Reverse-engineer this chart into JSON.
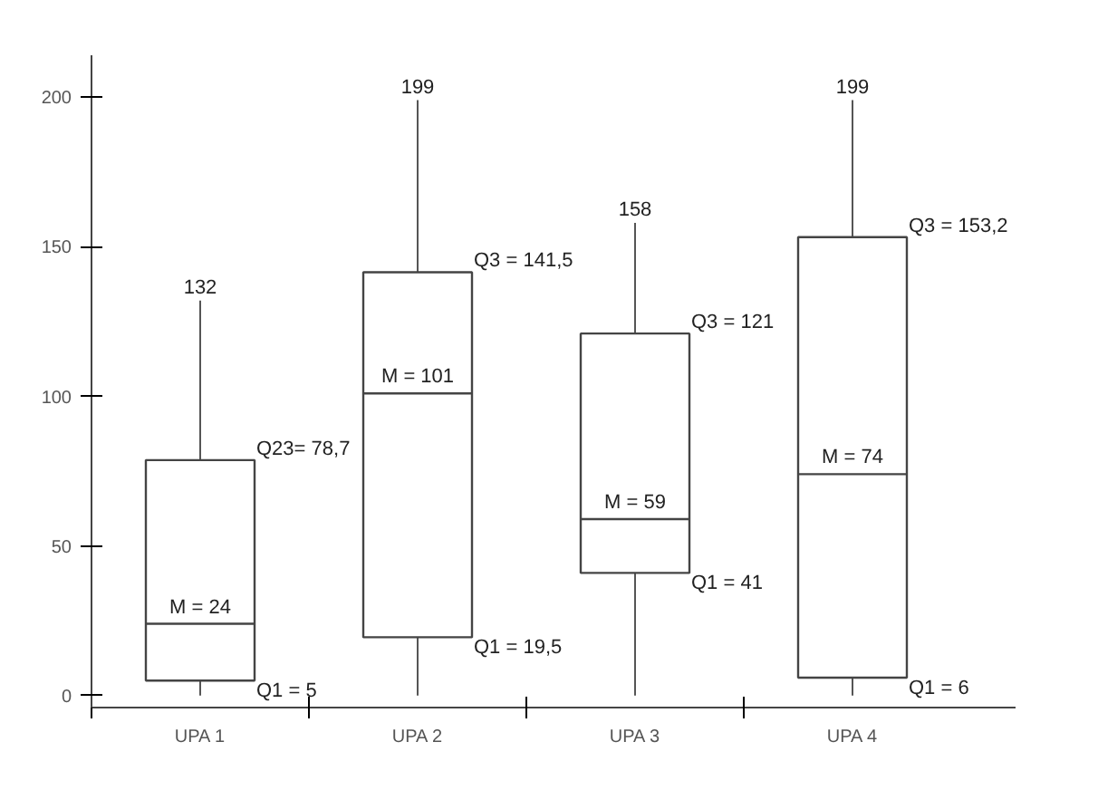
{
  "chart_data": {
    "type": "box",
    "categories": [
      "UPA 1",
      "UPA 2",
      "UPA 3",
      "UPA 4"
    ],
    "boxes": [
      {
        "low": 0,
        "q1": 5,
        "median": 24,
        "q3": 78.7,
        "high": 132
      },
      {
        "low": 0,
        "q1": 19.5,
        "median": 101,
        "q3": 141.5,
        "high": 199
      },
      {
        "low": 0,
        "q1": 41,
        "median": 59,
        "q3": 121,
        "high": 158
      },
      {
        "low": 0,
        "q1": 6,
        "median": 74,
        "q3": 153.2,
        "high": 199
      }
    ],
    "ylim": [
      -4,
      214
    ],
    "yticks": [
      0,
      50,
      100,
      150,
      200
    ],
    "grid": false,
    "color": "#ffffff",
    "annotations": [
      {
        "text": "132",
        "x": "UPA 1",
        "y": 132
      },
      {
        "text": "Q23= 78,7",
        "x": "UPA 1",
        "y": 78.7
      },
      {
        "text": "M = 24",
        "x": "UPA 1",
        "y": 24
      },
      {
        "text": "Q1 = 5",
        "x": "UPA 1",
        "y": 5
      },
      {
        "text": "199",
        "x": "UPA 2",
        "y": 199
      },
      {
        "text": "Q3 = 141,5",
        "x": "UPA 2",
        "y": 141.5
      },
      {
        "text": "M = 101",
        "x": "UPA 2",
        "y": 101
      },
      {
        "text": "Q1 = 19,5",
        "x": "UPA 2",
        "y": 19.5
      },
      {
        "text": "158",
        "x": "UPA 3",
        "y": 158
      },
      {
        "text": "Q3 = 121",
        "x": "UPA 3",
        "y": 121
      },
      {
        "text": "M = 59",
        "x": "UPA 3",
        "y": 59
      },
      {
        "text": "Q1 = 41",
        "x": "UPA 3",
        "y": 41
      },
      {
        "text": "199",
        "x": "UPA 4",
        "y": 199
      },
      {
        "text": "Q3 = 153,2",
        "x": "UPA 4",
        "y": 153.2
      },
      {
        "text": "M = 74",
        "x": "UPA 4",
        "y": 74
      },
      {
        "text": "Q1 = 6",
        "x": "UPA 4",
        "y": 6
      }
    ]
  }
}
